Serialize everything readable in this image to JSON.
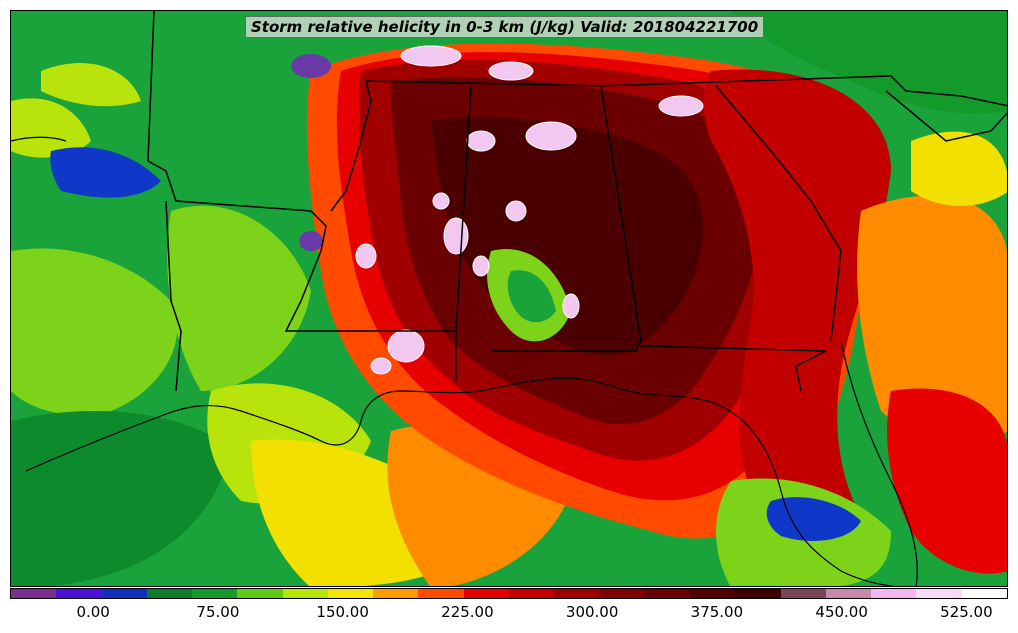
{
  "title": "Storm relative helicity in 0-3 km (J/kg) Valid: 201804221700",
  "colorbar": {
    "colors": [
      "#7a2f8f",
      "#4b0fd6",
      "#1030c0",
      "#0d7a2c",
      "#139a2a",
      "#5ec817",
      "#b4e60a",
      "#f2e600",
      "#ff9a00",
      "#ff4a00",
      "#e60000",
      "#c20000",
      "#a00000",
      "#820000",
      "#6a0000",
      "#500000",
      "#3c0000",
      "#7a4558",
      "#c48aa8",
      "#f0b8ee",
      "#f7dcf7",
      "#ffffff"
    ],
    "tick_labels": [
      "0.00",
      "75.00",
      "150.00",
      "225.00",
      "300.00",
      "375.00",
      "450.00",
      "525.00"
    ],
    "tick_values": [
      0,
      75,
      150,
      225,
      300,
      375,
      450,
      525
    ],
    "min": -50,
    "max": 550
  },
  "field_colors": {
    "green_dark": "#0d8a2c",
    "green": "#1aa33a",
    "lime": "#7dd31a",
    "yellow_green": "#b8e40c",
    "yellow": "#f2e000",
    "orange": "#ff8c00",
    "red": "#e60000",
    "dark_red": "#a00000",
    "maroon": "#6a0000",
    "deep_maroon": "#4a0000",
    "blue": "#1038c8",
    "purple": "#6a3aa8",
    "pink": "#f3c8f0",
    "white": "#ffffff"
  },
  "boundary_color": "#000000"
}
